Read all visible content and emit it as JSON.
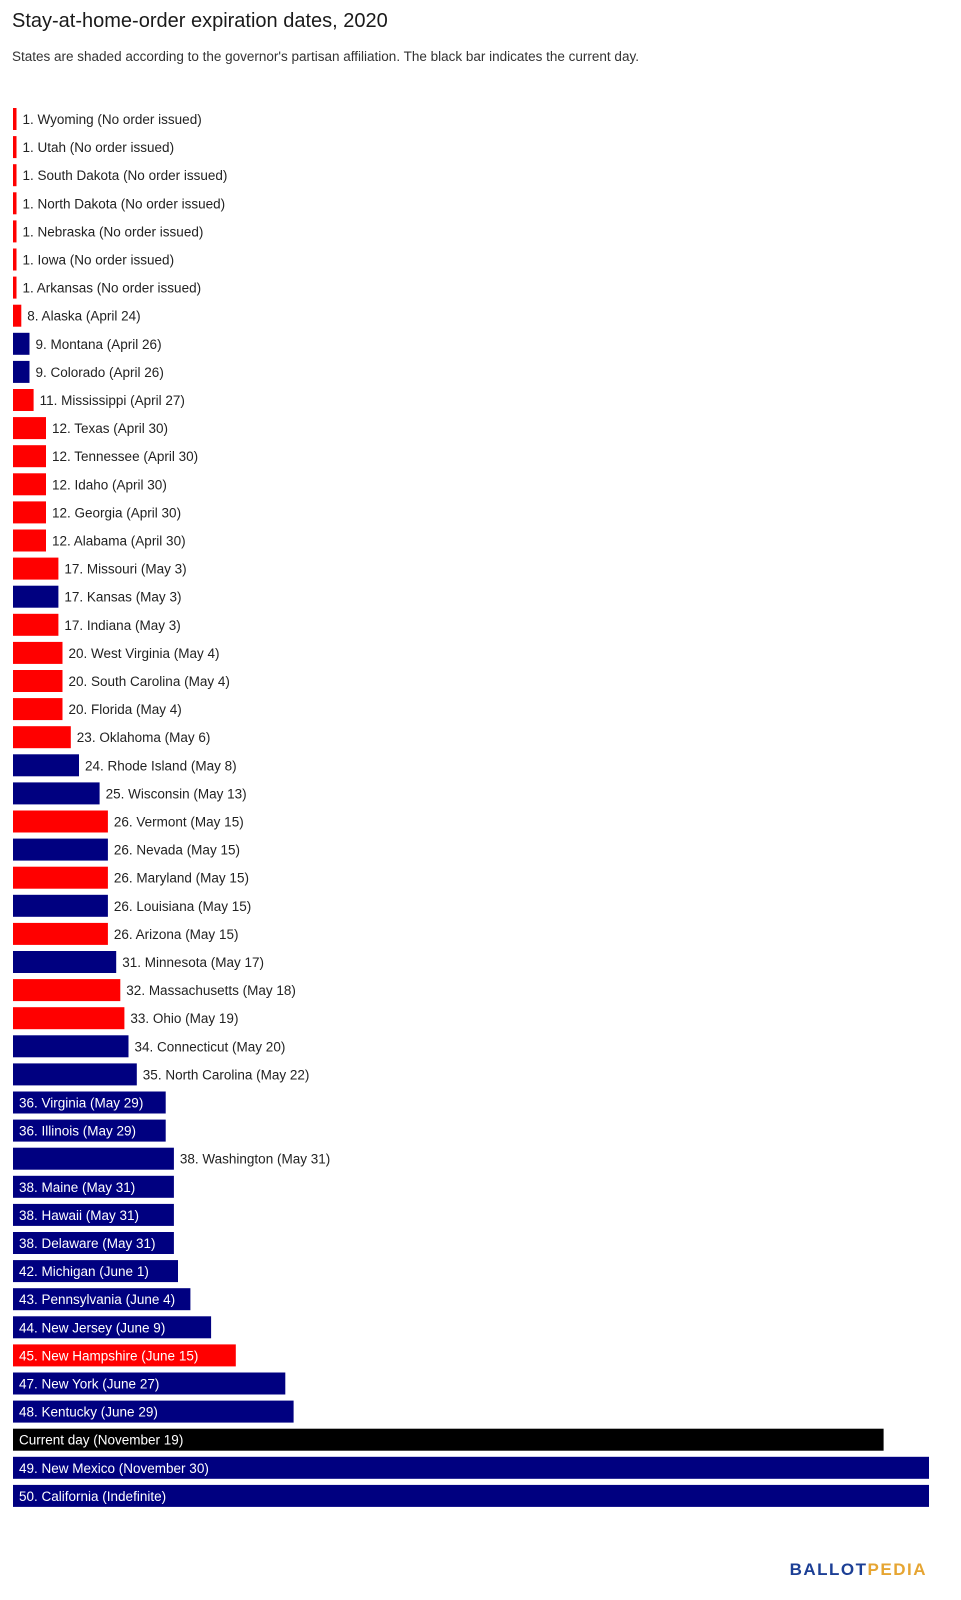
{
  "title": "Stay-at-home-order expiration dates, 2020",
  "subtitle": "States are shaded according to the governor's partisan affiliation. The black bar indicates the current day.",
  "logo": {
    "part1": "BALLOT",
    "part2": "PEDIA"
  },
  "colors": {
    "republican": "#ff0000",
    "democratic": "#000080",
    "current": "#000000"
  },
  "chart_data": {
    "type": "bar",
    "orientation": "horizontal",
    "unit": "days after April 22, 2020",
    "xlim": [
      0,
      222
    ],
    "bars": [
      {
        "label": "1. Wyoming (No order issued)",
        "value": 0,
        "party": "republican"
      },
      {
        "label": "1. Utah (No order issued)",
        "value": 0,
        "party": "republican"
      },
      {
        "label": "1. South Dakota (No order issued)",
        "value": 0,
        "party": "republican"
      },
      {
        "label": "1. North Dakota (No order issued)",
        "value": 0,
        "party": "republican"
      },
      {
        "label": "1. Nebraska (No order issued)",
        "value": 0,
        "party": "republican"
      },
      {
        "label": "1. Iowa (No order issued)",
        "value": 0,
        "party": "republican"
      },
      {
        "label": "1. Arkansas (No order issued)",
        "value": 0,
        "party": "republican"
      },
      {
        "label": "8. Alaska (April 24)",
        "value": 2,
        "party": "republican"
      },
      {
        "label": "9. Montana (April 26)",
        "value": 4,
        "party": "democratic"
      },
      {
        "label": "9. Colorado (April 26)",
        "value": 4,
        "party": "democratic"
      },
      {
        "label": "11. Mississippi (April 27)",
        "value": 5,
        "party": "republican"
      },
      {
        "label": "12. Texas (April 30)",
        "value": 8,
        "party": "republican"
      },
      {
        "label": "12. Tennessee (April 30)",
        "value": 8,
        "party": "republican"
      },
      {
        "label": "12. Idaho (April 30)",
        "value": 8,
        "party": "republican"
      },
      {
        "label": "12. Georgia (April 30)",
        "value": 8,
        "party": "republican"
      },
      {
        "label": "12. Alabama (April 30)",
        "value": 8,
        "party": "republican"
      },
      {
        "label": "17. Missouri (May 3)",
        "value": 11,
        "party": "republican"
      },
      {
        "label": "17. Kansas (May 3)",
        "value": 11,
        "party": "democratic"
      },
      {
        "label": "17. Indiana (May 3)",
        "value": 11,
        "party": "republican"
      },
      {
        "label": "20. West Virginia (May 4)",
        "value": 12,
        "party": "republican"
      },
      {
        "label": "20. South Carolina (May 4)",
        "value": 12,
        "party": "republican"
      },
      {
        "label": "20. Florida (May 4)",
        "value": 12,
        "party": "republican"
      },
      {
        "label": "23. Oklahoma (May 6)",
        "value": 14,
        "party": "republican"
      },
      {
        "label": "24. Rhode Island (May 8)",
        "value": 16,
        "party": "democratic"
      },
      {
        "label": "25. Wisconsin (May 13)",
        "value": 21,
        "party": "democratic"
      },
      {
        "label": "26. Vermont (May 15)",
        "value": 23,
        "party": "republican"
      },
      {
        "label": "26. Nevada (May 15)",
        "value": 23,
        "party": "democratic"
      },
      {
        "label": "26. Maryland (May 15)",
        "value": 23,
        "party": "republican"
      },
      {
        "label": "26. Louisiana (May 15)",
        "value": 23,
        "party": "democratic"
      },
      {
        "label": "26. Arizona (May 15)",
        "value": 23,
        "party": "republican"
      },
      {
        "label": "31. Minnesota (May 17)",
        "value": 25,
        "party": "democratic"
      },
      {
        "label": "32. Massachusetts (May 18)",
        "value": 26,
        "party": "republican"
      },
      {
        "label": "33. Ohio (May 19)",
        "value": 27,
        "party": "republican"
      },
      {
        "label": "34. Connecticut (May 20)",
        "value": 28,
        "party": "democratic"
      },
      {
        "label": "35. North Carolina (May 22)",
        "value": 30,
        "party": "democratic"
      },
      {
        "label": "36. Virginia (May 29)",
        "value": 37,
        "party": "democratic"
      },
      {
        "label": "36. Illinois (May 29)",
        "value": 37,
        "party": "democratic"
      },
      {
        "label": "38. Washington (May 31)",
        "value": 39,
        "party": "democratic"
      },
      {
        "label": "38. Maine (May 31)",
        "value": 39,
        "party": "democratic"
      },
      {
        "label": "38. Hawaii (May 31)",
        "value": 39,
        "party": "democratic"
      },
      {
        "label": "38. Delaware (May 31)",
        "value": 39,
        "party": "democratic"
      },
      {
        "label": "42. Michigan (June 1)",
        "value": 40,
        "party": "democratic"
      },
      {
        "label": "43. Pennsylvania (June 4)",
        "value": 43,
        "party": "democratic"
      },
      {
        "label": "44. New Jersey (June 9)",
        "value": 48,
        "party": "democratic"
      },
      {
        "label": "45. New Hampshire (June 15)",
        "value": 54,
        "party": "republican"
      },
      {
        "label": "47. New York (June 27)",
        "value": 66,
        "party": "democratic"
      },
      {
        "label": "48. Kentucky (June 29)",
        "value": 68,
        "party": "democratic"
      },
      {
        "label": "Current day (November 19)",
        "value": 211,
        "party": "current"
      },
      {
        "label": "49. New Mexico (November 30)",
        "value": 222,
        "party": "democratic"
      },
      {
        "label": "50. California (Indefinite)",
        "value": 225,
        "party": "democratic"
      }
    ]
  }
}
